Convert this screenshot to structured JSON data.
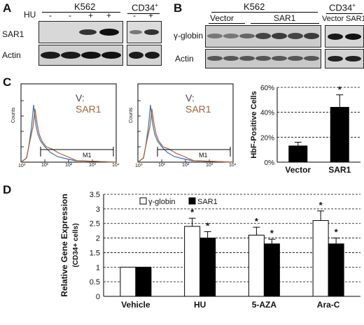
{
  "panels": {
    "A": "A",
    "B": "B",
    "C": "C",
    "D": "D"
  },
  "panel_a": {
    "k562": "K562",
    "cd34": "CD34",
    "cd34_sup": "+",
    "hu_label": "HU",
    "hu_signs": [
      "-",
      "-",
      "+",
      "+",
      "-",
      "+"
    ],
    "rows": [
      "SAR1",
      "Actin"
    ]
  },
  "panel_b": {
    "k562": "K562",
    "cd34": "CD34",
    "cd34_sup": "+",
    "groups": [
      "Vector",
      "SAR1"
    ],
    "cd34_lanes": [
      "Vector",
      "SAR1"
    ],
    "rows": [
      "γ-globin",
      "Actin"
    ]
  },
  "panel_c": {
    "flow_plots": [
      {
        "legend_v": "V:",
        "legend_s": "SAR1",
        "gate": "M1",
        "ylabel": "Counts",
        "xticks": [
          "10⁰",
          "10¹",
          "10²",
          "10³",
          "10⁴"
        ]
      },
      {
        "legend_v": "V:",
        "legend_s": "SAR1",
        "gate": "M1",
        "ylabel": "Counts",
        "xticks": [
          "10⁰",
          "10¹",
          "10²",
          "10³",
          "10⁴"
        ]
      }
    ],
    "colors": {
      "vector": "#3d6fb0",
      "sar1": "#a0603a"
    }
  },
  "chart_data": [
    {
      "type": "bar",
      "categories": [
        "Vector",
        "SAR1"
      ],
      "values": [
        13,
        44
      ],
      "errors": [
        3,
        10
      ],
      "significant": [
        false,
        true
      ],
      "ylabel": "HbF-Positive Cells",
      "ylim": [
        0,
        60
      ],
      "yticks": [
        "0%",
        "20%",
        "40%",
        "60%"
      ],
      "bar_color": "#000000",
      "grid": "dashed"
    },
    {
      "type": "bar",
      "categories": [
        "Vehicle",
        "HU",
        "5-AZA",
        "Ara-C"
      ],
      "series": [
        {
          "name": "γ-globin",
          "values": [
            1,
            2.4,
            2.1,
            2.6
          ],
          "errors": [
            0,
            0.28,
            0.27,
            0.33
          ],
          "significant": [
            false,
            true,
            true,
            true
          ],
          "color": "#ffffff"
        },
        {
          "name": "SAR1",
          "values": [
            1,
            2.0,
            1.8,
            1.8
          ],
          "errors": [
            0,
            0.22,
            0.16,
            0.2
          ],
          "significant": [
            false,
            true,
            true,
            true
          ],
          "color": "#000000"
        }
      ],
      "ylabel": "Relative Gene Expression",
      "ylabel_sub": "(CD34+ cells)",
      "ylim": [
        0,
        3.5
      ],
      "yticks": [
        "0",
        "0.5",
        "1",
        "1.5",
        "2",
        "2.5",
        "3",
        "3.5"
      ],
      "grid": "dashed",
      "legend": "top"
    }
  ],
  "star": "*"
}
